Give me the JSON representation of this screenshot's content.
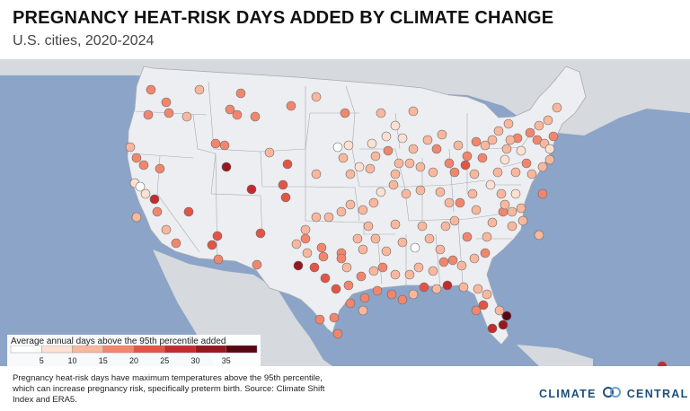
{
  "header": {
    "title": "PREGNANCY HEAT-RISK DAYS ADDED BY CLIMATE CHANGE",
    "subtitle": "U.S. cities, 2020-2024"
  },
  "legend": {
    "title": "Average annual days above the 95th percentile added",
    "ticks": [
      "5",
      "10",
      "15",
      "20",
      "25",
      "30",
      "35"
    ],
    "colors": [
      "#ffffff",
      "#fde0d2",
      "#f9b79d",
      "#f2866d",
      "#e35445",
      "#c52b2d",
      "#98161e",
      "#5a0613"
    ]
  },
  "footer": {
    "text": "Pregnancy heat-risk days have maximum temperatures above the 95th percentile, which can increase pregnancy risk, specifically preterm birth. Source: Climate Shift Index and ERA5."
  },
  "brand": {
    "word1": "CLIMATE",
    "word2": "CENTRAL",
    "color": "#1e4f7c"
  },
  "map_colors": {
    "ocean": "#8ba4c8",
    "land_other": "#d6d9dd",
    "land_us": "#eceef1",
    "state_border": "#a6abb3"
  }
}
